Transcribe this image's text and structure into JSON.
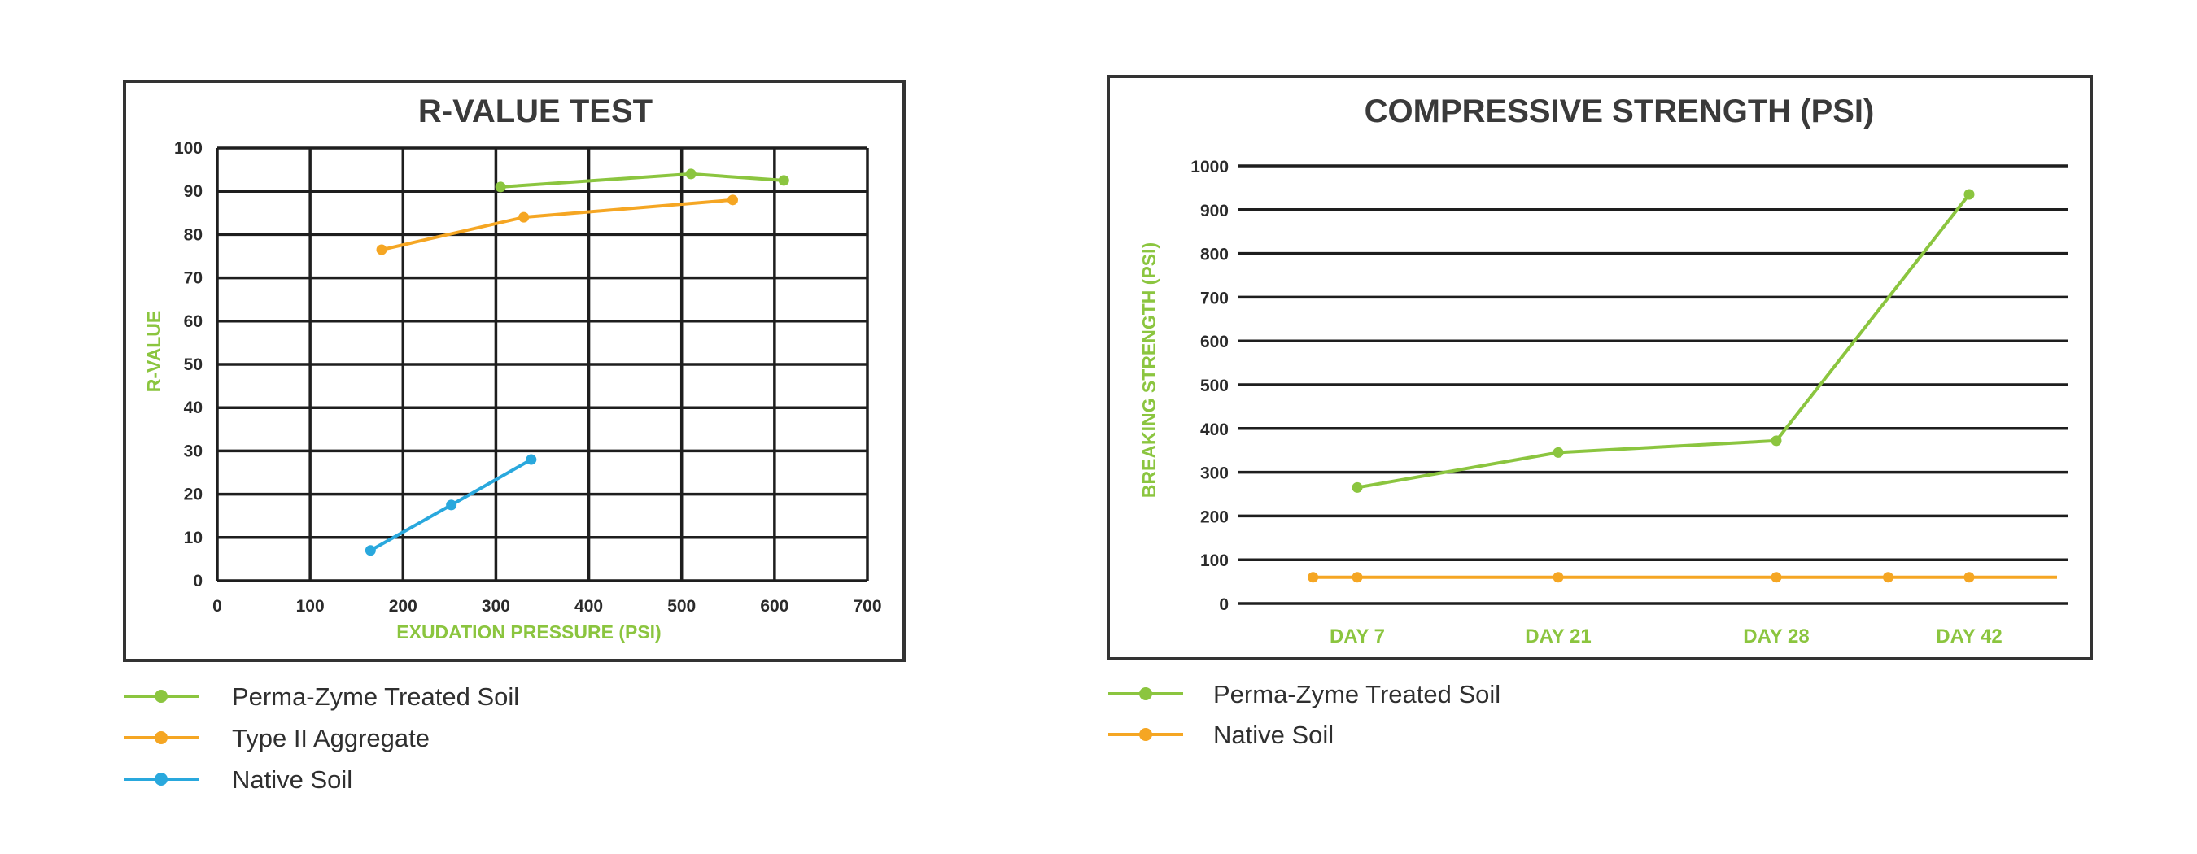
{
  "chart_data": [
    {
      "type": "line",
      "title": "R-VALUE TEST",
      "xlabel": "EXUDATION PRESSURE (PSI)",
      "ylabel": "R-VALUE",
      "xlim": [
        0,
        700
      ],
      "ylim": [
        0,
        100
      ],
      "xticks": [
        "0",
        "100",
        "200",
        "300",
        "400",
        "500",
        "600",
        "700"
      ],
      "yticks": [
        "0",
        "10",
        "20",
        "30",
        "40",
        "50",
        "60",
        "70",
        "80",
        "90",
        "100"
      ],
      "grid": true,
      "legend_position": "bottom-left",
      "label_color": "#8bc53f",
      "series": [
        {
          "name": "Perma-Zyme Treated Soil",
          "color": "#8bc53f",
          "points": [
            [
              305,
              91
            ],
            [
              510,
              94
            ],
            [
              610,
              92.5
            ]
          ]
        },
        {
          "name": "Type II Aggregate",
          "color": "#f5a623",
          "points": [
            [
              177,
              76.5
            ],
            [
              330,
              84
            ],
            [
              555,
              88
            ]
          ]
        },
        {
          "name": "Native Soil",
          "color": "#29a8dd",
          "points": [
            [
              165,
              7
            ],
            [
              252,
              17.5
            ],
            [
              338,
              28
            ]
          ]
        }
      ]
    },
    {
      "type": "line",
      "title": "COMPRESSIVE STRENGTH (PSI)",
      "xlabel": "",
      "ylabel": "BREAKING STRENGTH (PSI)",
      "ylim": [
        0,
        1000
      ],
      "yticks": [
        "0",
        "100",
        "200",
        "300",
        "400",
        "500",
        "600",
        "700",
        "800",
        "900",
        "1000"
      ],
      "categories": [
        "DAY 7",
        "DAY 21",
        "DAY 28",
        "DAY 42"
      ],
      "grid": true,
      "legend_position": "bottom-left",
      "label_color": "#8bc53f",
      "series": [
        {
          "name": "Perma-Zyme Treated Soil",
          "color": "#8bc53f",
          "points": [
            [
              0,
              265
            ],
            [
              1,
              345
            ],
            [
              2,
              372
            ],
            [
              3,
              935
            ]
          ]
        },
        {
          "name": "Native Soil",
          "color": "#f5a623",
          "points": [
            [
              -0.22,
              60
            ],
            [
              0,
              60
            ],
            [
              1,
              60
            ],
            [
              2,
              60
            ],
            [
              2.58,
              60
            ],
            [
              3,
              60
            ]
          ],
          "extends_right": true
        }
      ]
    }
  ]
}
